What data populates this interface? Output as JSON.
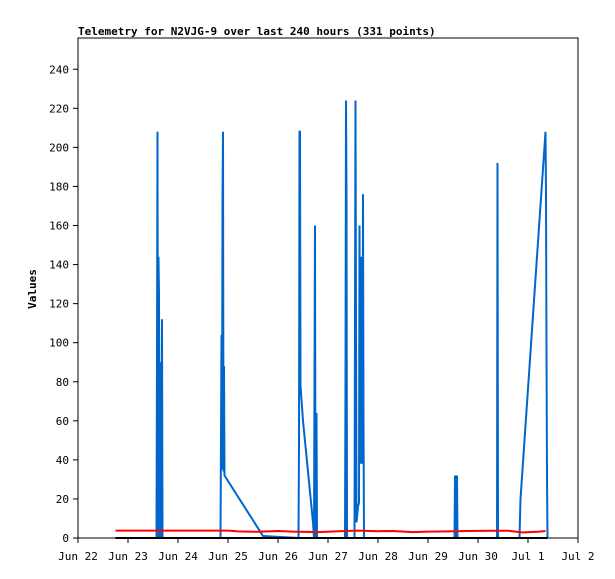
{
  "chart_data": {
    "type": "line",
    "title": "Telemetry for N2VJG-9 over last 240 hours (331 points)",
    "xlabel": "",
    "ylabel": "Values",
    "xlim": [
      0,
      10
    ],
    "ylim": [
      0,
      256
    ],
    "x_ticks": [
      {
        "x": 0,
        "label": "Jun 22"
      },
      {
        "x": 1,
        "label": "Jun 23"
      },
      {
        "x": 2,
        "label": "Jun 24"
      },
      {
        "x": 3,
        "label": "Jun 25"
      },
      {
        "x": 4,
        "label": "Jun 26"
      },
      {
        "x": 5,
        "label": "Jun 27"
      },
      {
        "x": 6,
        "label": "Jun 28"
      },
      {
        "x": 7,
        "label": "Jun 29"
      },
      {
        "x": 8,
        "label": "Jun 30"
      },
      {
        "x": 9,
        "label": "Jul 1"
      },
      {
        "x": 10,
        "label": "Jul 2"
      }
    ],
    "y_ticks": [
      0,
      20,
      40,
      60,
      80,
      100,
      120,
      140,
      160,
      180,
      200,
      220,
      240
    ],
    "grid": false,
    "legend": "none",
    "series": [
      {
        "color": "#0066cc",
        "points": [
          [
            1.57,
            0
          ],
          [
            1.58,
            96
          ],
          [
            1.59,
            208
          ],
          [
            1.6,
            0
          ],
          [
            1.61,
            144
          ],
          [
            1.62,
            124
          ],
          [
            1.63,
            0
          ],
          [
            1.64,
            90
          ],
          [
            1.65,
            52
          ],
          [
            1.66,
            0
          ],
          [
            1.68,
            112
          ],
          [
            1.69,
            0
          ],
          [
            2.85,
            0
          ],
          [
            2.87,
            104
          ],
          [
            2.88,
            35
          ],
          [
            2.89,
            174
          ],
          [
            2.9,
            208
          ],
          [
            2.91,
            34
          ],
          [
            2.92,
            88
          ],
          [
            2.93,
            32
          ],
          [
            3.7,
            1
          ],
          [
            4.41,
            0
          ],
          [
            4.42,
            48
          ],
          [
            4.43,
            208
          ],
          [
            4.44,
            208
          ],
          [
            4.45,
            78
          ],
          [
            4.5,
            60
          ],
          [
            4.7,
            8
          ],
          [
            4.72,
            0
          ],
          [
            4.74,
            160
          ],
          [
            4.75,
            0
          ],
          [
            4.77,
            64
          ],
          [
            4.78,
            0
          ],
          [
            5.34,
            0
          ],
          [
            5.35,
            80
          ],
          [
            5.36,
            224
          ],
          [
            5.37,
            176
          ],
          [
            5.38,
            0
          ],
          [
            5.53,
            0
          ],
          [
            5.55,
            224
          ],
          [
            5.57,
            8
          ],
          [
            5.6,
            16
          ],
          [
            5.62,
            18
          ],
          [
            5.63,
            160
          ],
          [
            5.64,
            60
          ],
          [
            5.65,
            144
          ],
          [
            5.66,
            38
          ],
          [
            5.67,
            144
          ],
          [
            5.68,
            108
          ],
          [
            5.69,
            38
          ],
          [
            5.7,
            176
          ],
          [
            5.71,
            60
          ],
          [
            5.72,
            0
          ],
          [
            7.53,
            0
          ],
          [
            7.54,
            32
          ],
          [
            7.55,
            16
          ],
          [
            7.56,
            0
          ],
          [
            7.58,
            32
          ],
          [
            7.59,
            0
          ],
          [
            8.38,
            0
          ],
          [
            8.39,
            192
          ],
          [
            8.4,
            0
          ],
          [
            8.83,
            0
          ],
          [
            8.85,
            20
          ],
          [
            9.35,
            208
          ],
          [
            9.36,
            176
          ],
          [
            9.37,
            96
          ],
          [
            9.38,
            32
          ],
          [
            9.39,
            0
          ]
        ]
      },
      {
        "color": "#ff0000",
        "points": [
          [
            0.75,
            3.8
          ],
          [
            1.5,
            3.8
          ],
          [
            2.0,
            3.8
          ],
          [
            2.5,
            3.8
          ],
          [
            3.0,
            3.8
          ],
          [
            3.2,
            3.4
          ],
          [
            3.6,
            3.2
          ],
          [
            4.0,
            3.6
          ],
          [
            4.3,
            3.3
          ],
          [
            4.8,
            3.0
          ],
          [
            5.2,
            3.5
          ],
          [
            5.6,
            3.8
          ],
          [
            6.0,
            3.5
          ],
          [
            6.3,
            3.6
          ],
          [
            6.7,
            3.0
          ],
          [
            7.0,
            3.3
          ],
          [
            7.4,
            3.4
          ],
          [
            7.8,
            3.6
          ],
          [
            8.3,
            3.7
          ],
          [
            8.6,
            3.7
          ],
          [
            8.9,
            2.8
          ],
          [
            9.0,
            3.0
          ],
          [
            9.2,
            3.2
          ],
          [
            9.35,
            3.6
          ]
        ]
      },
      {
        "color": "#000000",
        "points": [
          [
            0.75,
            0
          ],
          [
            9.39,
            0
          ]
        ]
      }
    ]
  }
}
